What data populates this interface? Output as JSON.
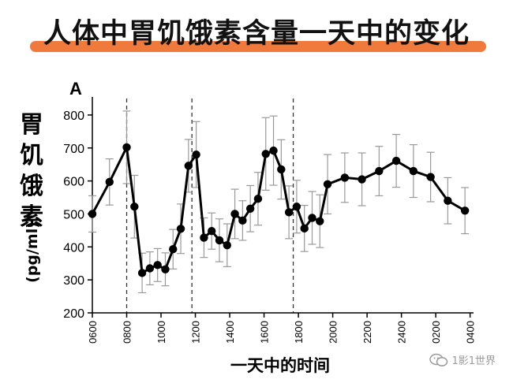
{
  "title": "人体中胃饥饿素含量一天中的变化",
  "watermark": {
    "text": "1影1世界",
    "icon": "wechat-icon"
  },
  "colors": {
    "accent": "#f07a3c",
    "line": "#000000",
    "errorbar": "#999999",
    "dashed": "#333333"
  },
  "chart_data": {
    "type": "line",
    "panel_label": "A",
    "ylabel": "胃饥饿素",
    "yunit": "(pg/ml)",
    "xlabel": "一天中的时间",
    "ylim": [
      200,
      850
    ],
    "yticks": [
      200,
      300,
      400,
      500,
      600,
      700,
      800
    ],
    "xlim": [
      6,
      28.2
    ],
    "xticks": [
      {
        "x": 6,
        "label": "0600"
      },
      {
        "x": 8,
        "label": "0800"
      },
      {
        "x": 10,
        "label": "1000"
      },
      {
        "x": 12,
        "label": "1200"
      },
      {
        "x": 14,
        "label": "1400"
      },
      {
        "x": 16,
        "label": "1600"
      },
      {
        "x": 18,
        "label": "1800"
      },
      {
        "x": 20,
        "label": "2000"
      },
      {
        "x": 22,
        "label": "2200"
      },
      {
        "x": 24,
        "label": "2400"
      },
      {
        "x": 26,
        "label": "0200"
      },
      {
        "x": 28,
        "label": "0400"
      }
    ],
    "meal_lines_x": [
      8,
      11.8,
      17.7
    ],
    "grid": false,
    "points": [
      {
        "x": 6.0,
        "y": 500,
        "err": 55
      },
      {
        "x": 7.0,
        "y": 597,
        "err": 70
      },
      {
        "x": 8.0,
        "y": 702,
        "err": 110
      },
      {
        "x": 8.45,
        "y": 522,
        "err": 95
      },
      {
        "x": 8.9,
        "y": 321,
        "err": 60
      },
      {
        "x": 9.35,
        "y": 335,
        "err": 50
      },
      {
        "x": 9.8,
        "y": 345,
        "err": 50
      },
      {
        "x": 10.25,
        "y": 332,
        "err": 50
      },
      {
        "x": 10.7,
        "y": 393,
        "err": 60
      },
      {
        "x": 11.15,
        "y": 455,
        "err": 75
      },
      {
        "x": 11.6,
        "y": 646,
        "err": 80
      },
      {
        "x": 12.05,
        "y": 680,
        "err": 100
      },
      {
        "x": 12.5,
        "y": 428,
        "err": 60
      },
      {
        "x": 12.95,
        "y": 448,
        "err": 55
      },
      {
        "x": 13.4,
        "y": 420,
        "err": 65
      },
      {
        "x": 13.85,
        "y": 405,
        "err": 65
      },
      {
        "x": 14.3,
        "y": 500,
        "err": 75
      },
      {
        "x": 14.75,
        "y": 480,
        "err": 60
      },
      {
        "x": 15.2,
        "y": 516,
        "err": 70
      },
      {
        "x": 15.65,
        "y": 546,
        "err": 80
      },
      {
        "x": 16.1,
        "y": 682,
        "err": 110
      },
      {
        "x": 16.55,
        "y": 692,
        "err": 105
      },
      {
        "x": 17.0,
        "y": 635,
        "err": 90
      },
      {
        "x": 17.45,
        "y": 505,
        "err": 80
      },
      {
        "x": 17.9,
        "y": 522,
        "err": 80
      },
      {
        "x": 18.35,
        "y": 456,
        "err": 70
      },
      {
        "x": 18.8,
        "y": 488,
        "err": 80
      },
      {
        "x": 19.25,
        "y": 478,
        "err": 80
      },
      {
        "x": 19.7,
        "y": 590,
        "err": 90
      },
      {
        "x": 20.7,
        "y": 610,
        "err": 75
      },
      {
        "x": 21.7,
        "y": 605,
        "err": 80
      },
      {
        "x": 22.7,
        "y": 630,
        "err": 75
      },
      {
        "x": 23.7,
        "y": 661,
        "err": 80
      },
      {
        "x": 24.7,
        "y": 630,
        "err": 80
      },
      {
        "x": 25.7,
        "y": 612,
        "err": 75
      },
      {
        "x": 26.7,
        "y": 540,
        "err": 70
      },
      {
        "x": 27.7,
        "y": 510,
        "err": 70
      }
    ]
  }
}
